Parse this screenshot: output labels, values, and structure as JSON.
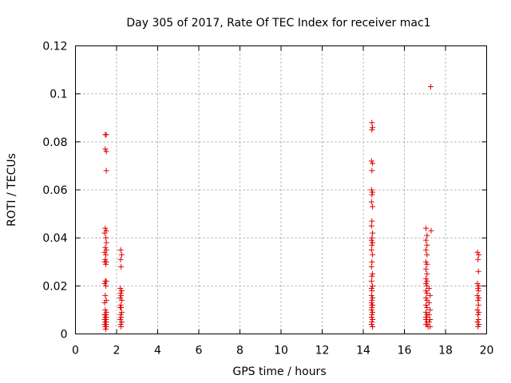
{
  "chart_data": {
    "type": "scatter",
    "title": "Day 305 of 2017, Rate Of TEC Index for receiver mac1",
    "xlabel": "GPS time / hours",
    "ylabel": "ROTI / TECUs",
    "xlim": [
      0,
      20
    ],
    "ylim": [
      0,
      0.12
    ],
    "x_ticks": [
      "0",
      "2",
      "4",
      "6",
      "8",
      "10",
      "12",
      "14",
      "16",
      "18",
      "20"
    ],
    "y_ticks": [
      "0",
      "0.02",
      "0.04",
      "0.06",
      "0.08",
      "0.1",
      "0.12"
    ],
    "grid": true,
    "marker": "+",
    "color": "#e00000",
    "points": [
      [
        1.45,
        0.083
      ],
      [
        1.5,
        0.083
      ],
      [
        1.45,
        0.077
      ],
      [
        1.5,
        0.076
      ],
      [
        1.5,
        0.068
      ],
      [
        1.45,
        0.044
      ],
      [
        1.5,
        0.043
      ],
      [
        1.42,
        0.042
      ],
      [
        1.48,
        0.04
      ],
      [
        1.5,
        0.038
      ],
      [
        1.45,
        0.036
      ],
      [
        1.5,
        0.035
      ],
      [
        1.42,
        0.034
      ],
      [
        1.48,
        0.033
      ],
      [
        1.45,
        0.031
      ],
      [
        1.5,
        0.03
      ],
      [
        1.42,
        0.03
      ],
      [
        1.48,
        0.029
      ],
      [
        1.45,
        0.022
      ],
      [
        1.5,
        0.022
      ],
      [
        1.42,
        0.021
      ],
      [
        1.48,
        0.02
      ],
      [
        1.45,
        0.016
      ],
      [
        1.5,
        0.014
      ],
      [
        1.42,
        0.013
      ],
      [
        1.45,
        0.01
      ],
      [
        1.5,
        0.009
      ],
      [
        1.42,
        0.008
      ],
      [
        1.48,
        0.008
      ],
      [
        1.45,
        0.007
      ],
      [
        1.5,
        0.007
      ],
      [
        1.42,
        0.006
      ],
      [
        1.48,
        0.006
      ],
      [
        1.45,
        0.005
      ],
      [
        1.5,
        0.005
      ],
      [
        1.42,
        0.004
      ],
      [
        1.48,
        0.004
      ],
      [
        1.45,
        0.003
      ],
      [
        1.5,
        0.003
      ],
      [
        1.47,
        0.002
      ],
      [
        2.2,
        0.035
      ],
      [
        2.25,
        0.033
      ],
      [
        2.2,
        0.031
      ],
      [
        2.22,
        0.028
      ],
      [
        2.18,
        0.019
      ],
      [
        2.25,
        0.018
      ],
      [
        2.2,
        0.017
      ],
      [
        2.22,
        0.016
      ],
      [
        2.18,
        0.015
      ],
      [
        2.25,
        0.014
      ],
      [
        2.2,
        0.012
      ],
      [
        2.22,
        0.011
      ],
      [
        2.18,
        0.011
      ],
      [
        2.25,
        0.009
      ],
      [
        2.2,
        0.008
      ],
      [
        2.22,
        0.007
      ],
      [
        2.18,
        0.006
      ],
      [
        2.25,
        0.005
      ],
      [
        2.2,
        0.004
      ],
      [
        2.22,
        0.003
      ],
      [
        17.28,
        0.103
      ],
      [
        14.42,
        0.088
      ],
      [
        14.45,
        0.086
      ],
      [
        14.42,
        0.085
      ],
      [
        14.4,
        0.072
      ],
      [
        14.45,
        0.071
      ],
      [
        14.42,
        0.068
      ],
      [
        14.4,
        0.06
      ],
      [
        14.45,
        0.059
      ],
      [
        14.42,
        0.058
      ],
      [
        14.4,
        0.055
      ],
      [
        14.45,
        0.053
      ],
      [
        14.42,
        0.047
      ],
      [
        14.4,
        0.045
      ],
      [
        14.45,
        0.042
      ],
      [
        14.42,
        0.04
      ],
      [
        14.4,
        0.039
      ],
      [
        14.45,
        0.038
      ],
      [
        14.42,
        0.037
      ],
      [
        14.4,
        0.035
      ],
      [
        14.45,
        0.033
      ],
      [
        14.42,
        0.03
      ],
      [
        14.4,
        0.028
      ],
      [
        14.45,
        0.025
      ],
      [
        14.42,
        0.024
      ],
      [
        14.4,
        0.022
      ],
      [
        14.45,
        0.02
      ],
      [
        14.42,
        0.018
      ],
      [
        14.4,
        0.016
      ],
      [
        14.45,
        0.015
      ],
      [
        14.42,
        0.014
      ],
      [
        14.4,
        0.013
      ],
      [
        14.45,
        0.012
      ],
      [
        14.42,
        0.011
      ],
      [
        14.4,
        0.01
      ],
      [
        14.45,
        0.009
      ],
      [
        14.42,
        0.008
      ],
      [
        14.4,
        0.007
      ],
      [
        14.45,
        0.006
      ],
      [
        14.42,
        0.005
      ],
      [
        14.4,
        0.004
      ],
      [
        14.45,
        0.003
      ],
      [
        14.42,
        0.012
      ],
      [
        14.4,
        0.019
      ],
      [
        17.05,
        0.044
      ],
      [
        17.1,
        0.041
      ],
      [
        17.3,
        0.043
      ],
      [
        17.05,
        0.039
      ],
      [
        17.1,
        0.037
      ],
      [
        17.05,
        0.035
      ],
      [
        17.1,
        0.033
      ],
      [
        17.05,
        0.03
      ],
      [
        17.1,
        0.029
      ],
      [
        17.05,
        0.027
      ],
      [
        17.1,
        0.025
      ],
      [
        17.05,
        0.023
      ],
      [
        17.1,
        0.022
      ],
      [
        17.05,
        0.021
      ],
      [
        17.1,
        0.02
      ],
      [
        17.2,
        0.019
      ],
      [
        17.05,
        0.018
      ],
      [
        17.1,
        0.017
      ],
      [
        17.25,
        0.016
      ],
      [
        17.05,
        0.015
      ],
      [
        17.1,
        0.014
      ],
      [
        17.2,
        0.013
      ],
      [
        17.05,
        0.012
      ],
      [
        17.1,
        0.011
      ],
      [
        17.25,
        0.01
      ],
      [
        17.05,
        0.009
      ],
      [
        17.1,
        0.008
      ],
      [
        17.2,
        0.008
      ],
      [
        17.05,
        0.007
      ],
      [
        17.1,
        0.007
      ],
      [
        17.25,
        0.006
      ],
      [
        17.05,
        0.006
      ],
      [
        17.1,
        0.005
      ],
      [
        17.2,
        0.005
      ],
      [
        17.05,
        0.004
      ],
      [
        17.1,
        0.004
      ],
      [
        17.25,
        0.003
      ],
      [
        17.15,
        0.003
      ],
      [
        19.55,
        0.034
      ],
      [
        19.62,
        0.033
      ],
      [
        19.58,
        0.031
      ],
      [
        19.6,
        0.026
      ],
      [
        19.55,
        0.021
      ],
      [
        19.62,
        0.02
      ],
      [
        19.58,
        0.019
      ],
      [
        19.6,
        0.018
      ],
      [
        19.55,
        0.016
      ],
      [
        19.62,
        0.015
      ],
      [
        19.58,
        0.014
      ],
      [
        19.6,
        0.012
      ],
      [
        19.55,
        0.01
      ],
      [
        19.62,
        0.009
      ],
      [
        19.58,
        0.008
      ],
      [
        19.6,
        0.006
      ],
      [
        19.55,
        0.005
      ],
      [
        19.62,
        0.004
      ],
      [
        19.58,
        0.003
      ]
    ]
  }
}
